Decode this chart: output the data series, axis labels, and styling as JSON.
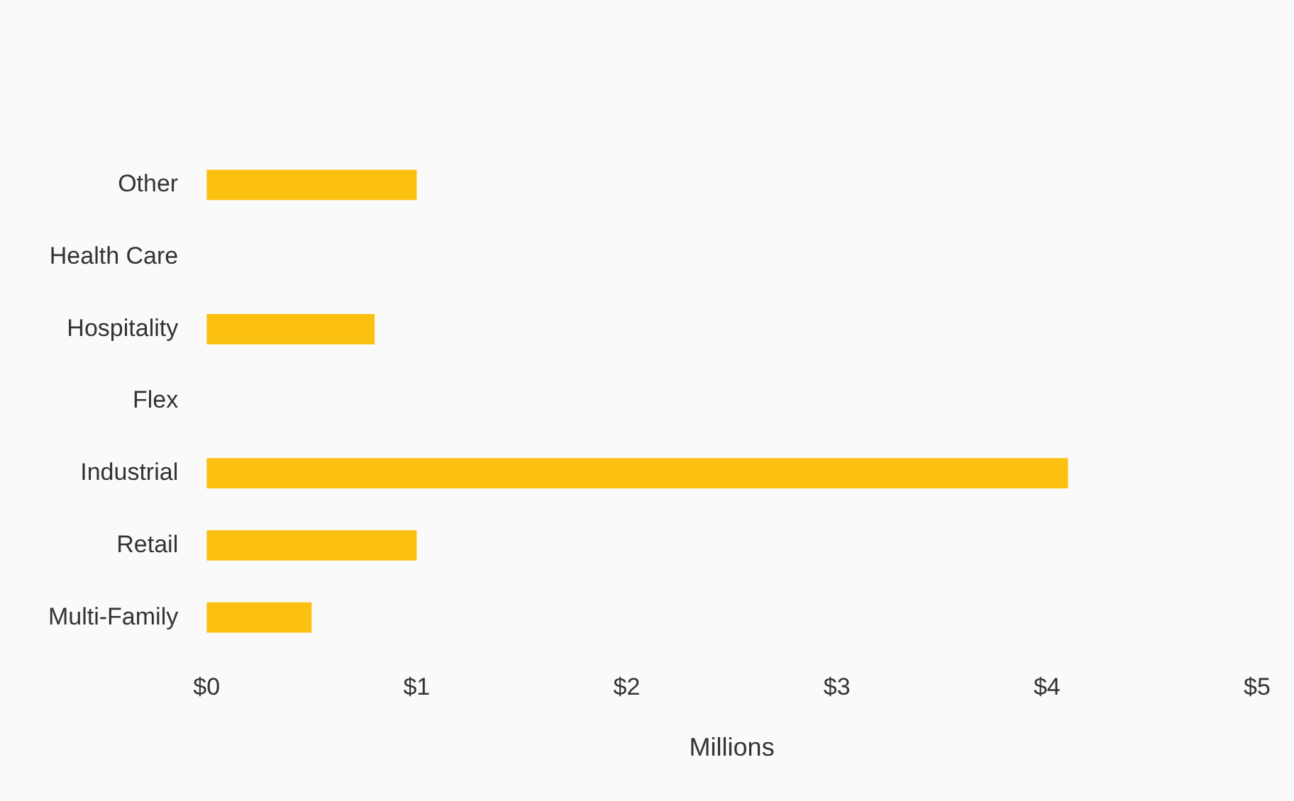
{
  "chart_data": {
    "type": "bar",
    "orientation": "horizontal",
    "xlabel": "Millions",
    "categories": [
      "Other",
      "Health Care",
      "Hospitality",
      "Flex",
      "Industrial",
      "Retail",
      "Multi-Family"
    ],
    "values": [
      1.0,
      0,
      0.8,
      0,
      4.1,
      1.0,
      0.5
    ],
    "color": "#fcc010",
    "xlim": [
      0,
      5
    ],
    "xticks": [
      {
        "value": 0,
        "label": "$0"
      },
      {
        "value": 1,
        "label": "$1"
      },
      {
        "value": 2,
        "label": "$2"
      },
      {
        "value": 3,
        "label": "$3"
      },
      {
        "value": 4,
        "label": "$4"
      },
      {
        "value": 5,
        "label": "$5"
      }
    ],
    "grid": false,
    "legend": false
  }
}
